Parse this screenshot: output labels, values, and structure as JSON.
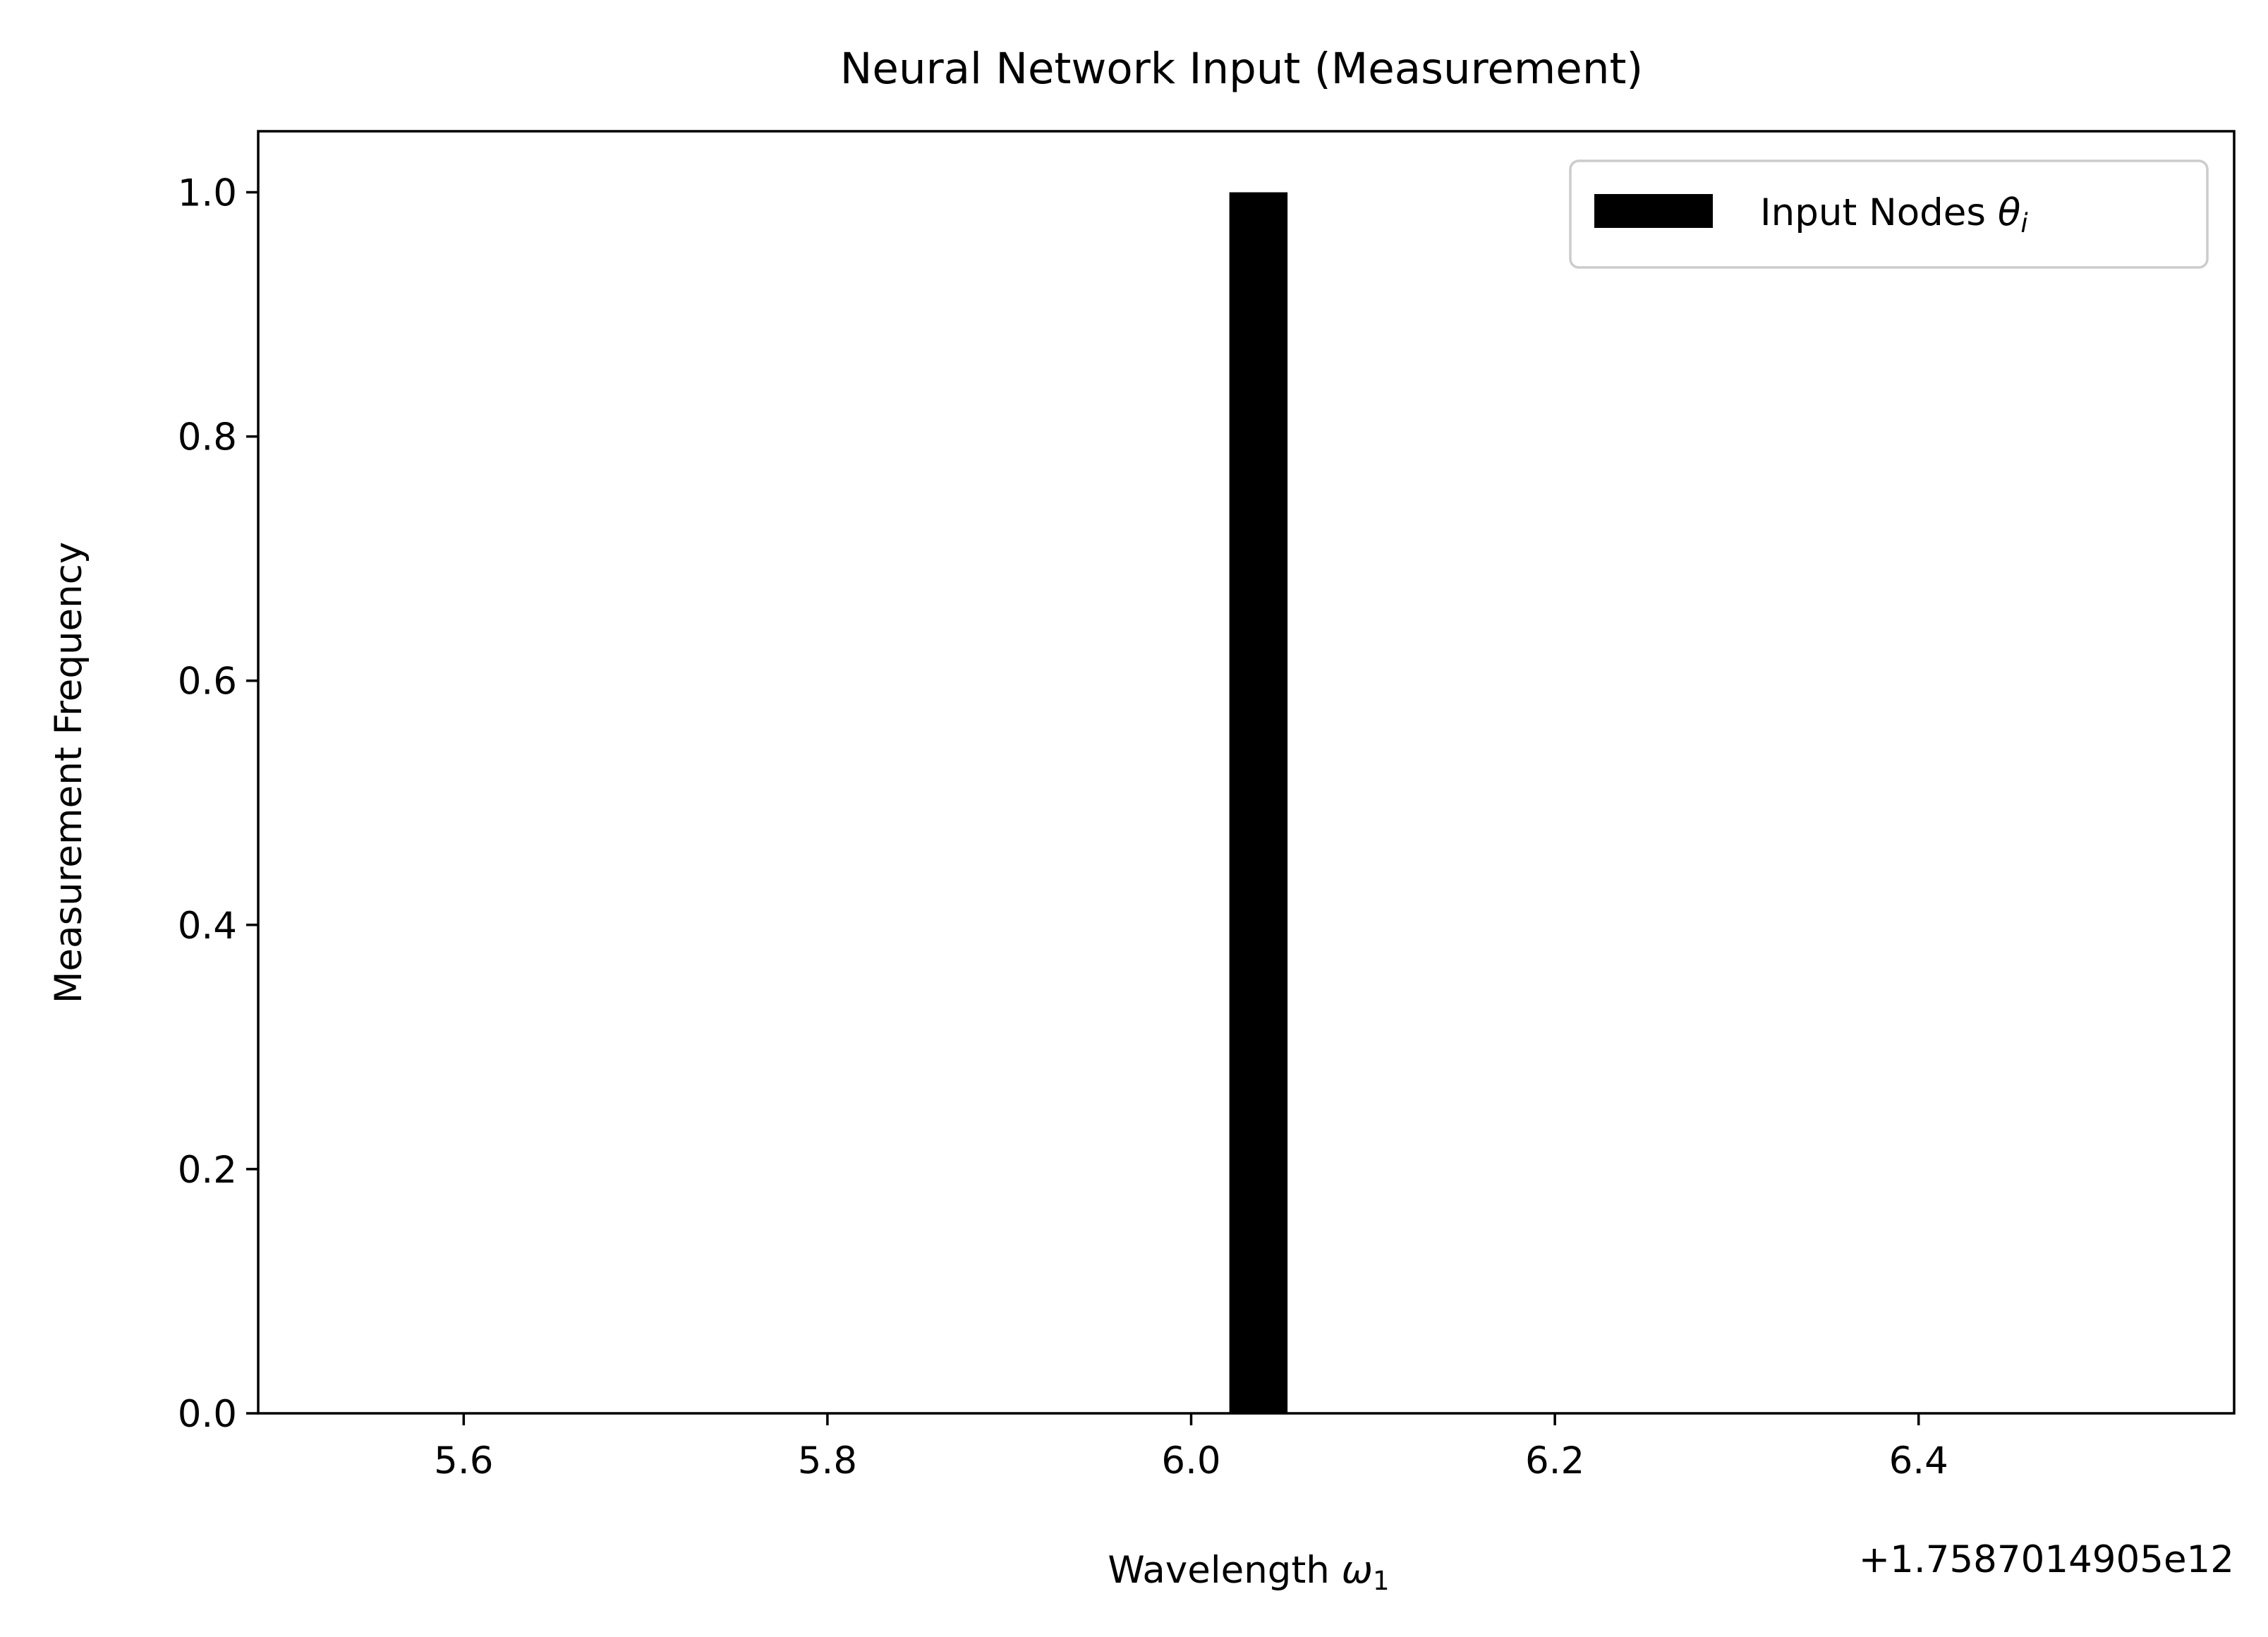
{
  "chart_data": {
    "type": "bar",
    "title": "Neural Network Input (Measurement)",
    "xlabel_text": "Wavelength ",
    "xlabel_symbol": "ω",
    "xlabel_subscript": "1",
    "ylabel": "Measurement Frequency",
    "x_offset_label": "+1.7587014905e12",
    "xlim": [
      5.487,
      6.5735
    ],
    "ylim": [
      0,
      1.05
    ],
    "x_ticks": [
      5.6,
      5.8,
      6.0,
      6.2,
      6.4
    ],
    "x_tick_labels": [
      "5.6",
      "5.8",
      "6.0",
      "6.2",
      "6.4"
    ],
    "y_ticks": [
      0.0,
      0.2,
      0.4,
      0.6,
      0.8,
      1.0
    ],
    "y_tick_labels": [
      "0.0",
      "0.2",
      "0.4",
      "0.6",
      "0.8",
      "1.0"
    ],
    "grid": false,
    "legend_position": "top-right",
    "series": [
      {
        "name_text": "Input Nodes ",
        "name_symbol": "θ",
        "name_subscript": "i",
        "color": "#000000",
        "bars": [
          {
            "x_start": 6.021,
            "x_end": 6.053,
            "value": 1.0
          }
        ]
      }
    ]
  }
}
